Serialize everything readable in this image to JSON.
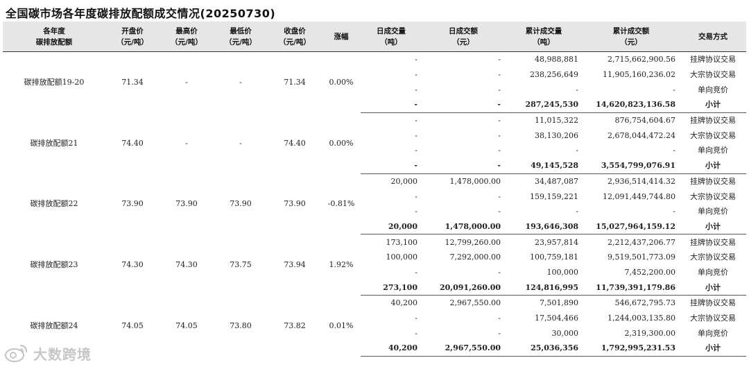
{
  "title": "全国碳市场各年度碳排放配额成交情况(20250730)",
  "headers": {
    "product": [
      "各年度",
      "碳排放配额"
    ],
    "open": [
      "开盘价",
      "（元/吨）"
    ],
    "high": [
      "最高价",
      "（元/吨）"
    ],
    "low": [
      "最低价",
      "（元/吨）"
    ],
    "close": [
      "收盘价",
      "（元/吨）"
    ],
    "change": [
      "涨幅"
    ],
    "day_vol": [
      "日成交量",
      "（吨）"
    ],
    "day_amt": [
      "日成交额",
      "（元）"
    ],
    "cum_vol": [
      "累计成交量",
      "（吨）"
    ],
    "cum_amt": [
      "累计成交额",
      "（元）"
    ],
    "method": [
      "交易方式"
    ]
  },
  "groups": [
    {
      "product": "碳排放配额19-20",
      "open": "71.34",
      "high": "-",
      "low": "-",
      "close": "71.34",
      "change": "0.00%",
      "rows": [
        {
          "day_vol": "-",
          "day_amt": "-",
          "cum_vol": "48,988,881",
          "cum_amt": "2,715,662,900.56",
          "method": "挂牌协议交易"
        },
        {
          "day_vol": "-",
          "day_amt": "-",
          "cum_vol": "238,256,649",
          "cum_amt": "11,905,160,236.02",
          "method": "大宗协议交易"
        },
        {
          "day_vol": "-",
          "day_amt": "-",
          "cum_vol": "-",
          "cum_amt": "-",
          "method": "单向竞价"
        },
        {
          "day_vol": "-",
          "day_amt": "-",
          "cum_vol": "287,245,530",
          "cum_amt": "14,620,823,136.58",
          "method": "小计"
        }
      ]
    },
    {
      "product": "碳排放配额21",
      "open": "74.40",
      "high": "-",
      "low": "-",
      "close": "74.40",
      "change": "0.00%",
      "rows": [
        {
          "day_vol": "-",
          "day_amt": "-",
          "cum_vol": "11,015,322",
          "cum_amt": "876,754,604.67",
          "method": "挂牌协议交易"
        },
        {
          "day_vol": "-",
          "day_amt": "-",
          "cum_vol": "38,130,206",
          "cum_amt": "2,678,044,472.24",
          "method": "大宗协议交易"
        },
        {
          "day_vol": "-",
          "day_amt": "-",
          "cum_vol": "-",
          "cum_amt": "-",
          "method": "单向竞价"
        },
        {
          "day_vol": "-",
          "day_amt": "-",
          "cum_vol": "49,145,528",
          "cum_amt": "3,554,799,076.91",
          "method": "小计"
        }
      ]
    },
    {
      "product": "碳排放配额22",
      "open": "73.90",
      "high": "73.90",
      "low": "73.90",
      "close": "73.90",
      "change": "-0.81%",
      "rows": [
        {
          "day_vol": "20,000",
          "day_amt": "1,478,000.00",
          "cum_vol": "34,487,087",
          "cum_amt": "2,936,514,414.32",
          "method": "挂牌协议交易"
        },
        {
          "day_vol": "-",
          "day_amt": "-",
          "cum_vol": "159,159,221",
          "cum_amt": "12,091,449,744.80",
          "method": "大宗协议交易"
        },
        {
          "day_vol": "-",
          "day_amt": "-",
          "cum_vol": "-",
          "cum_amt": "-",
          "method": "单向竞价"
        },
        {
          "day_vol": "20,000",
          "day_amt": "1,478,000.00",
          "cum_vol": "193,646,308",
          "cum_amt": "15,027,964,159.12",
          "method": "小计"
        }
      ]
    },
    {
      "product": "碳排放配额23",
      "open": "74.30",
      "high": "74.30",
      "low": "73.75",
      "close": "73.94",
      "change": "1.92%",
      "rows": [
        {
          "day_vol": "173,100",
          "day_amt": "12,799,260.00",
          "cum_vol": "23,957,814",
          "cum_amt": "2,212,437,206.77",
          "method": "挂牌协议交易"
        },
        {
          "day_vol": "100,000",
          "day_amt": "7,292,000.00",
          "cum_vol": "100,759,181",
          "cum_amt": "9,519,501,773.09",
          "method": "大宗协议交易"
        },
        {
          "day_vol": "-",
          "day_amt": "-",
          "cum_vol": "100,000",
          "cum_amt": "7,452,200.00",
          "method": "单向竞价"
        },
        {
          "day_vol": "273,100",
          "day_amt": "20,091,260.00",
          "cum_vol": "124,816,995",
          "cum_amt": "11,739,391,179.86",
          "method": "小计"
        }
      ]
    },
    {
      "product": "碳排放配额24",
      "open": "74.05",
      "high": "74.05",
      "low": "73.80",
      "close": "73.82",
      "change": "0.01%",
      "rows": [
        {
          "day_vol": "40,200",
          "day_amt": "2,967,550.00",
          "cum_vol": "7,501,890",
          "cum_amt": "546,672,795.73",
          "method": "挂牌协议交易"
        },
        {
          "day_vol": "-",
          "day_amt": "-",
          "cum_vol": "17,504,466",
          "cum_amt": "1,244,003,135.80",
          "method": "大宗协议交易"
        },
        {
          "day_vol": "-",
          "day_amt": "-",
          "cum_vol": "30,000",
          "cum_amt": "2,319,300.00",
          "method": "单向竞价"
        },
        {
          "day_vol": "40,200",
          "day_amt": "2,967,550.00",
          "cum_vol": "25,036,356",
          "cum_amt": "1,792,995,231.53",
          "method": "小计"
        }
      ]
    }
  ],
  "watermark": {
    "text": "大数跨境",
    "icon": "weibo-logo-icon"
  }
}
